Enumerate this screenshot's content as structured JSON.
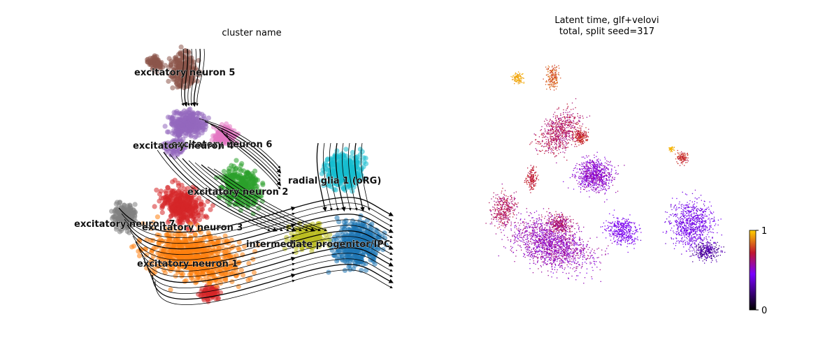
{
  "left_panel": {
    "title": "cluster name"
  },
  "right_panel": {
    "title_line1": "Latent time, glf+velovi",
    "title_line2": "total, split seed=317"
  },
  "colorbar": {
    "min_label": "0",
    "max_label": "1",
    "colormap": [
      "#000000",
      "#7a00ff",
      "#c0172f",
      "#ffd100"
    ]
  },
  "chart_data": [
    {
      "type": "scatter",
      "title": "cluster name",
      "description_kind": "umap embedding with velocity streamlines",
      "legend": "on data",
      "grid": false,
      "clusters": [
        {
          "name": "excitatory neuron 5",
          "color": "#8c564b"
        },
        {
          "name": "excitatory neuron 6",
          "color": "#9467bd"
        },
        {
          "name": "excitatory neuron 4",
          "color": "#e377c2"
        },
        {
          "name": "radial glia 1 (oRG)",
          "color": "#17becf"
        },
        {
          "name": "excitatory neuron 2",
          "color": "#2ca02c"
        },
        {
          "name": "excitatory neuron 7",
          "color": "#7f7f7f"
        },
        {
          "name": "excitatory neuron 3",
          "color": "#d62728"
        },
        {
          "name": "intermediate progenitor/IPC",
          "color": "#1f77b4"
        },
        {
          "name": "excitatory neuron 1",
          "color": "#ff7f0e"
        },
        {
          "name": "",
          "color": "#bcbd22"
        }
      ]
    },
    {
      "type": "scatter",
      "title": "Latent time, glf+velovi total, split seed=317",
      "color_scale": {
        "min": 0,
        "max": 1,
        "colormap": "gnuplot"
      },
      "grid": false
    }
  ]
}
